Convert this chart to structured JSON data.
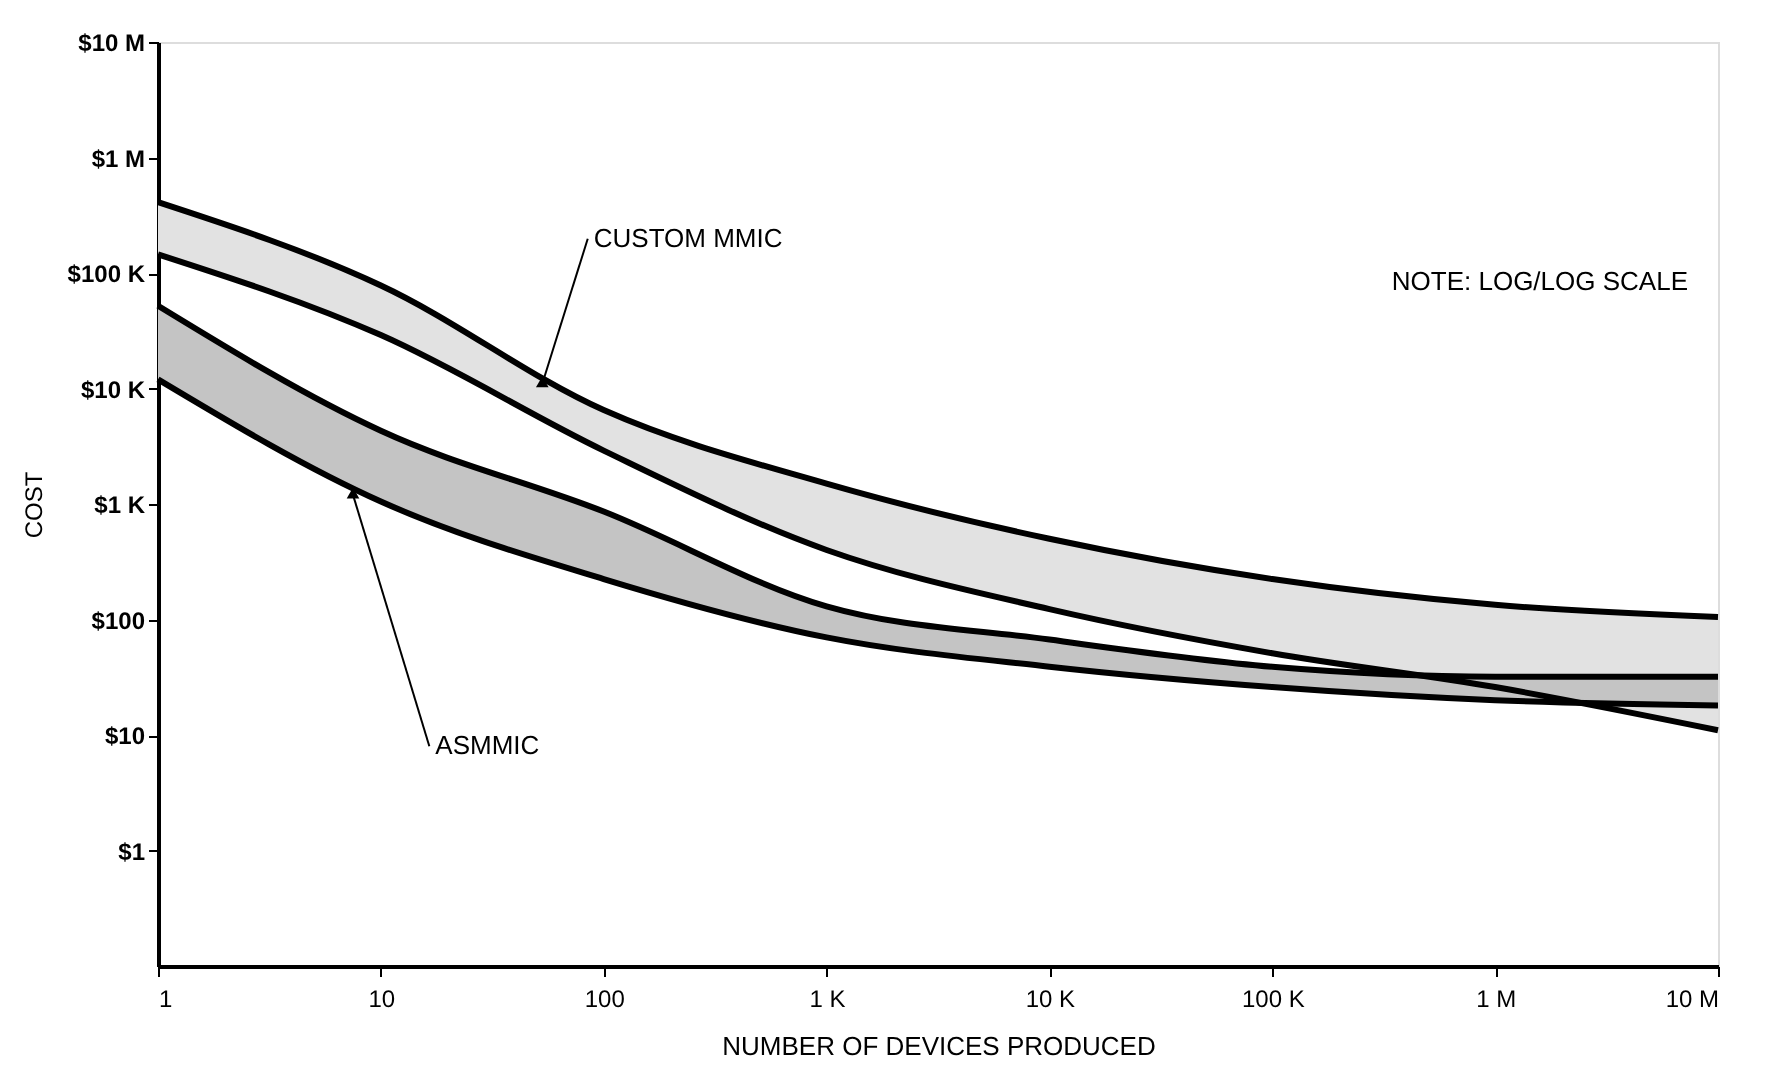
{
  "chart_data": {
    "type": "line",
    "xlabel": "NUMBER OF DEVICES PRODUCED",
    "ylabel": "COST",
    "log": "xy",
    "grid": false,
    "marker": "none",
    "line_style": "solid",
    "xlim": [
      1,
      10000000
    ],
    "ylim": [
      0.1,
      10000000
    ],
    "xticks": [
      1,
      10,
      100,
      {
        "value": 1000,
        "label": "1 K"
      },
      {
        "value": 10000,
        "label": "10 K"
      },
      {
        "value": 100000,
        "label": "100 K"
      },
      {
        "value": 1000000,
        "label": "1 M"
      },
      {
        "value": 10000000,
        "label": "10 M"
      }
    ],
    "yticks": [
      {
        "value": 1,
        "label": "$1"
      },
      {
        "value": 10,
        "label": "$10"
      },
      {
        "value": 100,
        "label": "$100"
      },
      {
        "value": 1000,
        "label": "$1 K"
      },
      {
        "value": 10000,
        "label": "$10 K"
      },
      {
        "value": 100000,
        "label": "$100 K"
      },
      {
        "value": 1000000,
        "label": "$1 M"
      },
      {
        "value": 10000000,
        "label": "$10 M"
      }
    ],
    "x": [
      1,
      10,
      100,
      1000,
      10000,
      100000,
      1000000,
      10000000
    ],
    "series": [
      {
        "color": "#000000",
        "values": [
          410000,
          78000,
          6500,
          1500,
          500,
          224,
          134,
          105
        ],
        "upper": [
          410000,
          78000,
          6500,
          1500,
          500,
          224,
          134,
          105
        ],
        "lower": [
          145000,
          29000,
          2900,
          400,
          123,
          51,
          26,
          11
        ]
      },
      {
        "color": "#000000",
        "values": [
          145000,
          29000,
          2900,
          400,
          123,
          51,
          26,
          11
        ]
      },
      {
        "color": "#000000",
        "values": [
          52000,
          4300,
          860,
          130,
          67,
          39,
          32,
          32
        ],
        "upper": [
          52000,
          4300,
          860,
          130,
          67,
          39,
          32,
          32
        ],
        "lower": [
          12000,
          1050,
          224,
          70,
          39,
          26,
          20,
          18
        ]
      },
      {
        "color": "#000000",
        "values": [
          12000,
          1050,
          224,
          70,
          39,
          26,
          20,
          18
        ]
      }
    ],
    "annotations": [
      {
        "text": "CUSTOM MMIC",
        "x": 53,
        "y": 11000
      },
      {
        "text": "ASMMIC",
        "x": 7.5,
        "y": 1200
      },
      "NOTE:  LOG/LOG SCALE"
    ]
  }
}
